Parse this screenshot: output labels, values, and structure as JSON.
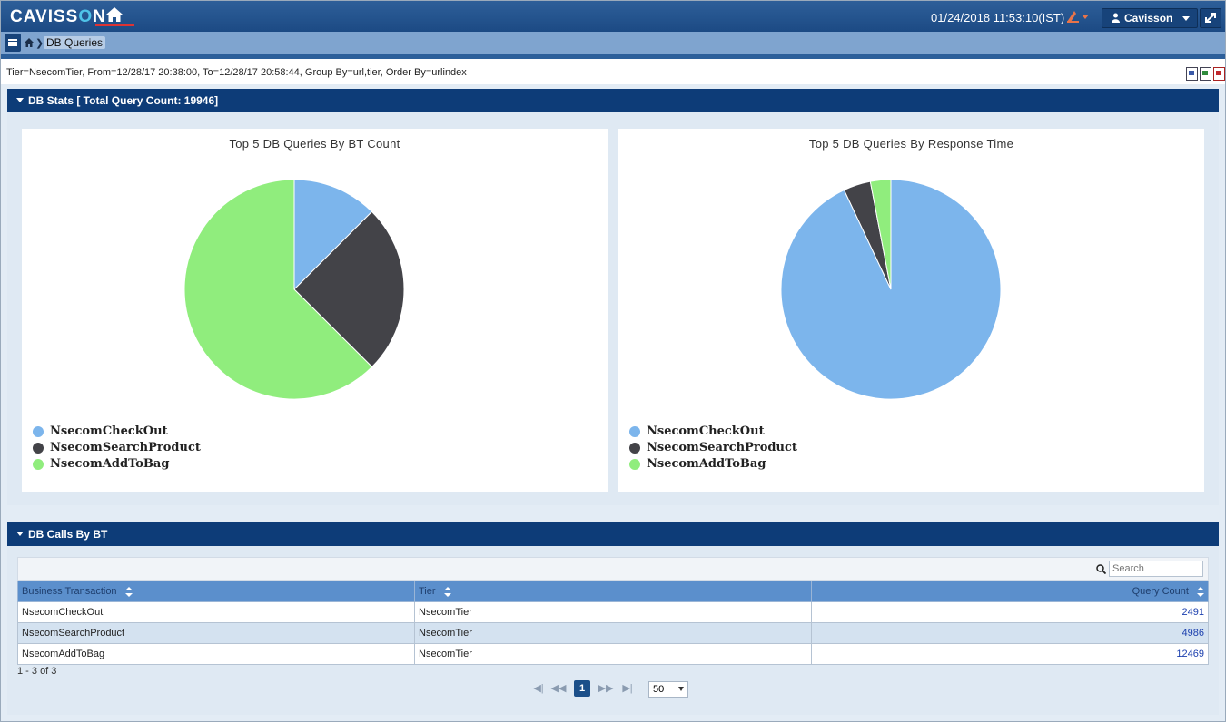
{
  "header": {
    "logo_text": "CAVISSON",
    "datetime": "01/24/2018 11:53:10(IST)",
    "user_label": "Cavisson"
  },
  "breadcrumb": {
    "current": "DB Queries"
  },
  "filter_text": "Tier=NsecomTier, From=12/28/17 20:38:00, To=12/28/17 20:58:44, Group By=url,tier, Order By=urlindex",
  "db_stats": {
    "title": "DB Stats [ Total Query Count: 19946]"
  },
  "chart_data": [
    {
      "type": "pie",
      "title": "Top 5 DB Queries By BT Count",
      "categories": [
        "NsecomCheckOut",
        "NsecomSearchProduct",
        "NsecomAddToBag"
      ],
      "values": [
        2491,
        4986,
        12469
      ],
      "colors": [
        "#7cb5ec",
        "#434348",
        "#90ed7d"
      ]
    },
    {
      "type": "pie",
      "title": "Top 5 DB Queries By Response Time",
      "categories": [
        "NsecomCheckOut",
        "NsecomSearchProduct",
        "NsecomAddToBag"
      ],
      "values": [
        93,
        4,
        3
      ],
      "colors": [
        "#7cb5ec",
        "#434348",
        "#90ed7d"
      ]
    }
  ],
  "db_calls": {
    "title": "DB Calls By BT",
    "search_placeholder": "Search",
    "columns": [
      "Business Transaction",
      "Tier",
      "Query Count"
    ],
    "rows": [
      [
        "NsecomCheckOut",
        "NsecomTier",
        "2491"
      ],
      [
        "NsecomSearchProduct",
        "NsecomTier",
        "4986"
      ],
      [
        "NsecomAddToBag",
        "NsecomTier",
        "12469"
      ]
    ],
    "count_text": "1 - 3 of 3",
    "current_page": "1",
    "page_size": "50"
  }
}
